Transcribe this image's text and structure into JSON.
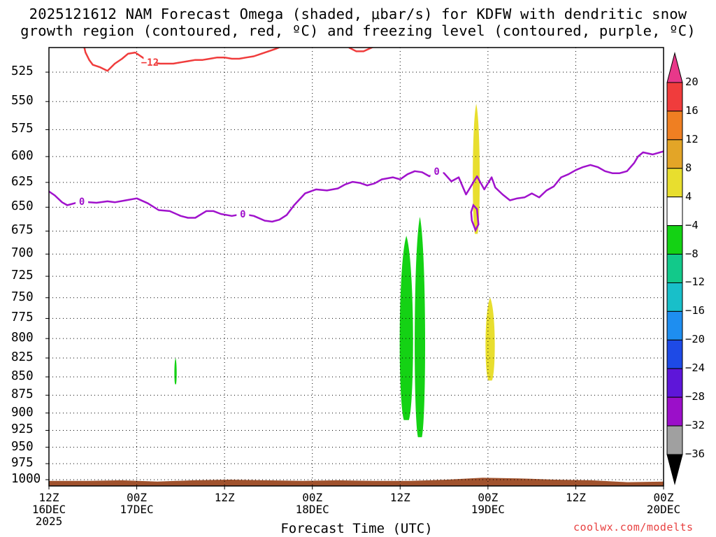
{
  "title_line1": "2025121612 NAM Forecast Omega (shaded, μbar/s) for KDFW with dendritic snow",
  "title_line2": "growth region (contoured, red, ºC) and freezing level (contoured, purple, ºC)",
  "xaxis_title": "Forecast Time (UTC)",
  "source": "coolwx.com/modelts",
  "chart_data": {
    "type": "time-height contour",
    "title": "2025121612 NAM Forecast Omega (shaded, μbar/s) for KDFW with dendritic snow growth region (contoured, red, ºC) and freezing level (contoured, purple, ºC)",
    "xlabel": "Forecast Time (UTC)",
    "ylabel": "",
    "y_scale": "log-pressure (inverted)",
    "y_range_hPa": [
      1010,
      505
    ],
    "y_ticks": [
      "525",
      "550",
      "575",
      "600",
      "625",
      "650",
      "675",
      "700",
      "725",
      "750",
      "775",
      "800",
      "825",
      "850",
      "875",
      "900",
      "925",
      "950",
      "975",
      "1000"
    ],
    "x_range_hours": [
      0,
      84
    ],
    "x_ticks": [
      {
        "hour": 0,
        "lines": [
          "12Z",
          "16DEC",
          "2025"
        ]
      },
      {
        "hour": 12,
        "lines": [
          "00Z",
          "17DEC"
        ]
      },
      {
        "hour": 24,
        "lines": [
          "12Z"
        ]
      },
      {
        "hour": 36,
        "lines": [
          "00Z",
          "18DEC"
        ]
      },
      {
        "hour": 48,
        "lines": [
          "12Z"
        ]
      },
      {
        "hour": 60,
        "lines": [
          "00Z",
          "19DEC"
        ]
      },
      {
        "hour": 72,
        "lines": [
          "12Z"
        ]
      },
      {
        "hour": 84,
        "lines": [
          "00Z",
          "20DEC"
        ]
      }
    ],
    "grid": true,
    "colorbar": {
      "labels": [
        "20",
        "16",
        "12",
        "8",
        "4",
        "−4",
        "−8",
        "−12",
        "−16",
        "−20",
        "−24",
        "−28",
        "−32",
        "−36"
      ],
      "colors": [
        "#e8388a",
        "#f03c3c",
        "#ef7f22",
        "#e3a527",
        "#e8de2e",
        "#ffffff",
        "#14d214",
        "#12c98a",
        "#18bfc9",
        "#1e8ef0",
        "#1e4ae6",
        "#5e16d9",
        "#9b0fc9",
        "#a0a0a0",
        "#000000"
      ]
    },
    "freezing_level": {
      "label": "0",
      "color": "#a012cc",
      "points": [
        [
          0,
          634
        ],
        [
          0.8,
          638
        ],
        [
          1.8,
          645
        ],
        [
          2.5,
          648
        ],
        [
          3.5,
          646
        ],
        [
          4.5,
          644
        ],
        [
          5.5,
          645
        ],
        [
          6.5,
          645.5
        ],
        [
          8,
          644
        ],
        [
          9,
          645
        ],
        [
          10.5,
          643
        ],
        [
          12,
          641
        ],
        [
          13.5,
          646
        ],
        [
          15,
          653
        ],
        [
          16.5,
          654
        ],
        [
          18,
          659
        ],
        [
          19,
          661
        ],
        [
          20,
          661
        ],
        [
          21.5,
          654
        ],
        [
          22.5,
          654
        ],
        [
          23.5,
          657
        ],
        [
          25,
          659
        ],
        [
          26.5,
          657
        ],
        [
          28,
          659
        ],
        [
          29.5,
          664
        ],
        [
          30.5,
          665
        ],
        [
          31.5,
          663
        ],
        [
          32.5,
          658
        ],
        [
          33.5,
          648
        ],
        [
          35,
          636
        ],
        [
          36.5,
          632
        ],
        [
          38,
          633
        ],
        [
          39.5,
          631
        ],
        [
          40.5,
          627
        ],
        [
          41.5,
          624.5
        ],
        [
          42.5,
          625.5
        ],
        [
          43.5,
          628
        ],
        [
          44.5,
          626
        ],
        [
          45.5,
          622
        ],
        [
          47,
          620
        ],
        [
          48,
          622
        ],
        [
          49,
          617
        ],
        [
          50,
          614
        ],
        [
          51,
          615
        ],
        [
          52,
          619
        ],
        [
          53,
          614
        ],
        [
          54,
          616
        ],
        [
          55,
          624
        ],
        [
          56,
          620
        ],
        [
          57,
          637
        ],
        [
          58.5,
          619
        ],
        [
          59.5,
          632
        ],
        [
          60.5,
          620
        ],
        [
          61,
          630
        ],
        [
          62,
          637
        ],
        [
          63,
          643
        ],
        [
          64,
          641
        ],
        [
          65,
          640
        ],
        [
          66,
          636
        ],
        [
          67,
          640
        ],
        [
          68,
          633
        ],
        [
          69,
          629
        ],
        [
          70,
          620
        ],
        [
          71,
          617
        ],
        [
          72,
          613
        ],
        [
          73,
          610
        ],
        [
          74,
          608
        ],
        [
          75,
          610
        ],
        [
          76,
          614
        ],
        [
          77,
          616
        ],
        [
          78,
          616
        ],
        [
          79,
          614
        ],
        [
          80,
          606
        ],
        [
          80.5,
          600
        ],
        [
          81.2,
          596
        ],
        [
          82.5,
          598
        ],
        [
          84,
          595
        ]
      ]
    },
    "dgz_contour": {
      "label": "−12",
      "color": "#f03c3c",
      "points": [
        [
          4.8,
          504
        ],
        [
          5,
          509
        ],
        [
          5.5,
          515
        ],
        [
          6,
          519
        ],
        [
          7,
          521
        ],
        [
          8,
          524
        ],
        [
          9,
          518
        ],
        [
          10,
          514
        ],
        [
          10.8,
          510
        ],
        [
          11.8,
          509
        ],
        [
          12.8,
          513
        ],
        [
          13.8,
          517
        ],
        [
          15.2,
          518
        ],
        [
          16,
          518
        ],
        [
          17,
          518
        ],
        [
          18,
          517
        ],
        [
          19,
          516
        ],
        [
          20,
          515
        ],
        [
          21,
          515
        ],
        [
          22,
          514
        ],
        [
          23,
          513
        ],
        [
          24,
          513
        ],
        [
          25,
          514
        ],
        [
          26,
          514
        ],
        [
          27,
          513
        ],
        [
          28,
          512
        ],
        [
          29,
          510
        ],
        [
          30,
          508
        ],
        [
          31,
          506
        ],
        [
          31.8,
          504
        ]
      ]
    },
    "shaded_regions": [
      {
        "sign": "negative",
        "bin": "−8 to −4",
        "color": "#14d214",
        "hours": [
          17.1,
          17.5
        ],
        "pressure_hPa": [
          825,
          860
        ]
      },
      {
        "sign": "negative",
        "bin": "−8 to −4",
        "color": "#14d214",
        "hours": [
          47.7,
          50.0
        ],
        "pressure_hPa": [
          680,
          910
        ]
      },
      {
        "sign": "negative",
        "bin": "−8 to −4",
        "color": "#14d214",
        "hours": [
          49.8,
          51.6
        ],
        "pressure_hPa": [
          660,
          935
        ]
      },
      {
        "sign": "positive",
        "bin": "4 to 8",
        "color": "#e8de2e",
        "hours": [
          57.8,
          59.0
        ],
        "pressure_hPa": [
          552,
          678
        ]
      },
      {
        "sign": "positive",
        "bin": "4 to 8",
        "color": "#e8de2e",
        "hours": [
          59.5,
          61.1
        ],
        "pressure_hPa": [
          750,
          855
        ]
      }
    ],
    "terrain": {
      "color": "#a0522d",
      "surface_pressure_hPa": [
        1002,
        1002,
        1001,
        1003,
        1001,
        1000,
        1001,
        1002,
        1001,
        1002,
        1002,
        1000,
        997,
        998,
        1000,
        1001,
        1004,
        1003
      ]
    }
  }
}
